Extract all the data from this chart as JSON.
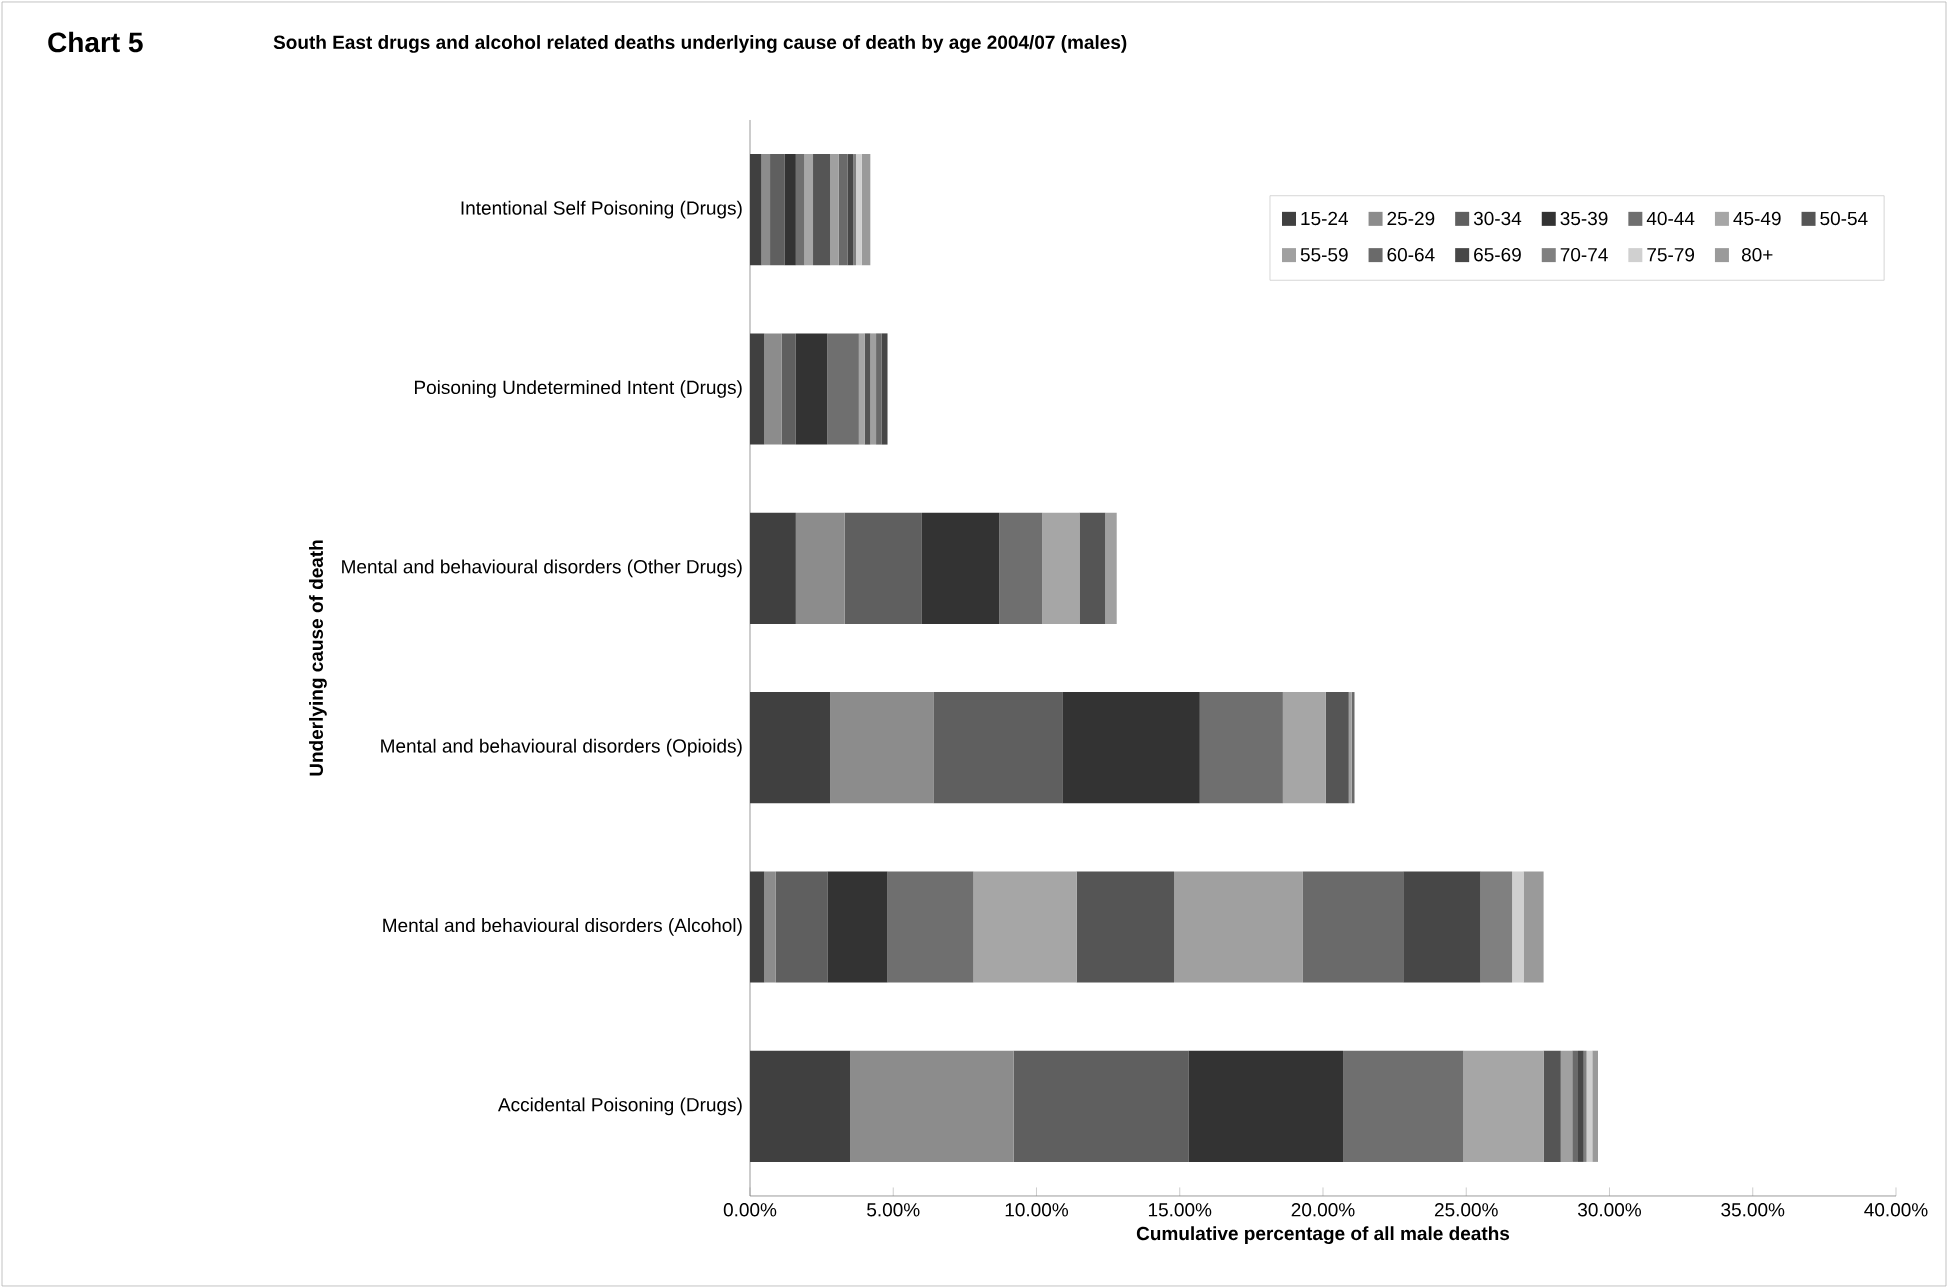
{
  "chart_data": {
    "type": "bar",
    "orientation": "horizontal",
    "stacked": true,
    "title": "South East drugs and alcohol related deaths underlying cause of death  by age 2004/07 (males)",
    "annotations": [
      "Chart 5"
    ],
    "xlabel": "Cumulative percentage of all male deaths",
    "ylabel": "Underlying cause of death",
    "categories": [
      "Intentional Self Poisoning (Drugs)",
      "Poisoning Undetermined Intent (Drugs)",
      "Mental and behavioural disorders (Other Drugs)",
      "Mental and behavioural disorders (Opioids)",
      "Mental and behavioural disorders (Alcohol)",
      "Accidental Poisoning (Drugs)"
    ],
    "series": [
      {
        "name": "15-24",
        "color": "#404040",
        "values": [
          0.4,
          0.5,
          1.6,
          2.8,
          0.5,
          3.5
        ]
      },
      {
        "name": "25-29",
        "color": "#8c8c8c",
        "values": [
          0.3,
          0.6,
          1.7,
          3.6,
          0.4,
          5.7
        ]
      },
      {
        "name": "30-34",
        "color": "#5f5f5f",
        "values": [
          0.5,
          0.5,
          2.7,
          4.5,
          1.8,
          6.1
        ]
      },
      {
        "name": "35-39",
        "color": "#333333",
        "values": [
          0.4,
          1.1,
          2.7,
          4.8,
          2.1,
          5.4
        ]
      },
      {
        "name": "40-44",
        "color": "#6f6f6f",
        "values": [
          0.3,
          1.1,
          1.5,
          2.9,
          3.0,
          4.2
        ]
      },
      {
        "name": "45-49",
        "color": "#a6a6a6",
        "values": [
          0.3,
          0.2,
          1.3,
          1.5,
          3.6,
          2.8
        ]
      },
      {
        "name": "50-54",
        "color": "#555555",
        "values": [
          0.6,
          0.2,
          0.9,
          0.8,
          3.4,
          0.6
        ]
      },
      {
        "name": "55-59",
        "color": "#a0a0a0",
        "values": [
          0.3,
          0.2,
          0.4,
          0.1,
          4.5,
          0.4
        ]
      },
      {
        "name": "60-64",
        "color": "#6a6a6a",
        "values": [
          0.3,
          0.2,
          0,
          0.1,
          3.5,
          0.2
        ]
      },
      {
        "name": "65-69",
        "color": "#474747",
        "values": [
          0.2,
          0.2,
          0,
          0,
          2.7,
          0.2
        ]
      },
      {
        "name": "70-74",
        "color": "#808080",
        "values": [
          0.1,
          0,
          0,
          0,
          1.1,
          0.1
        ]
      },
      {
        "name": "75-79",
        "color": "#d0d0d0",
        "values": [
          0.2,
          0,
          0,
          0,
          0.4,
          0.2
        ]
      },
      {
        "name": "80+",
        "color": "#9a9a9a",
        "values": [
          0.3,
          0,
          0,
          0,
          0.7,
          0.2
        ]
      }
    ],
    "xlim": [
      0,
      40
    ],
    "xticks": [
      {
        "value": 0,
        "label": "0.00%"
      },
      {
        "value": 5,
        "label": "5.00%"
      },
      {
        "value": 10,
        "label": "10.00%"
      },
      {
        "value": 15,
        "label": "15.00%"
      },
      {
        "value": 20,
        "label": "20.00%"
      },
      {
        "value": 25,
        "label": "25.00%"
      },
      {
        "value": 30,
        "label": "30.00%"
      },
      {
        "value": 35,
        "label": "35.00%"
      },
      {
        "value": 40,
        "label": "40.00%"
      }
    ],
    "grid": false,
    "legend": "top right"
  }
}
